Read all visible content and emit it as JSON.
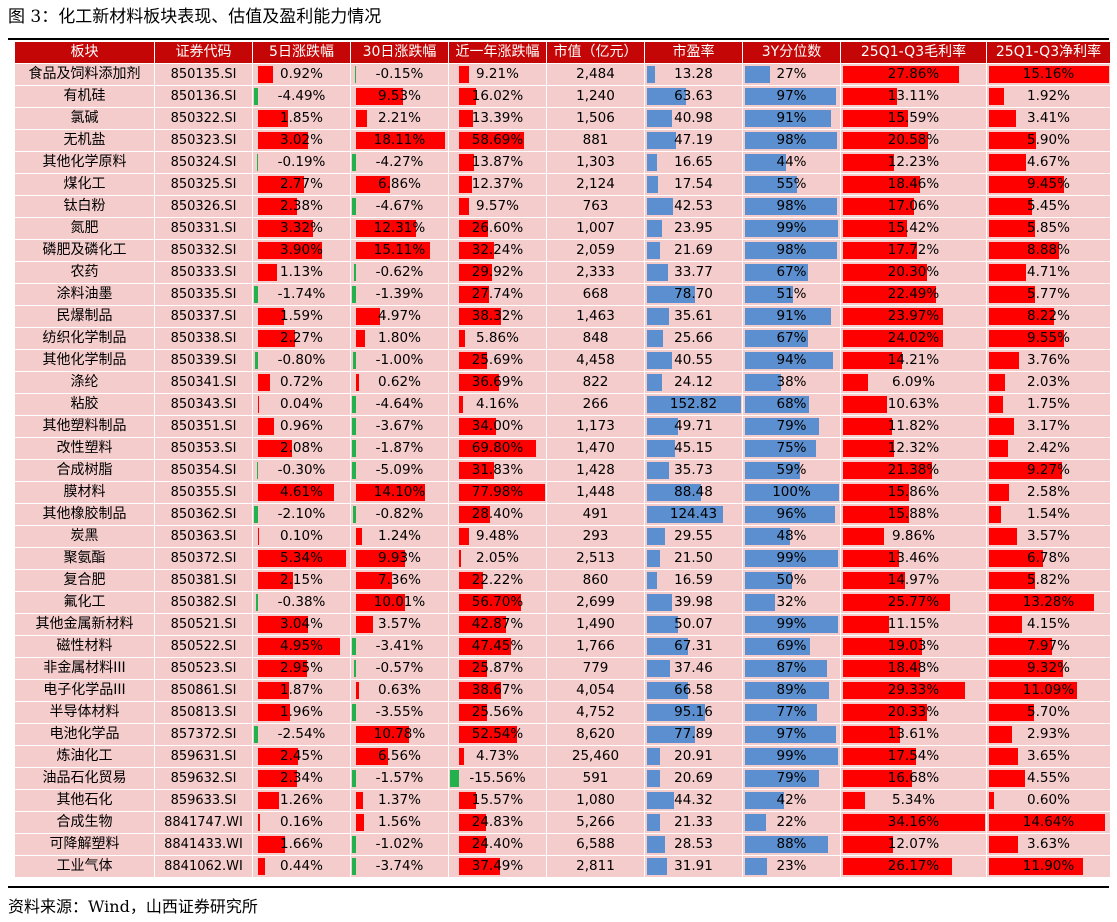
{
  "title": "图 3：化工新材料板块表现、估值及盈利能力情况",
  "source": "资料来源：Wind，山西证券研究所",
  "colors": {
    "header_bg": "#c50606",
    "cell_bg": "#f4cccc",
    "positive_bar": "#ff0000",
    "negative_bar": "#22b14c",
    "valuation_bar": "#5b8fcf",
    "margin_bar": "#ff0000"
  },
  "headers": [
    "板块",
    "证券代码",
    "5日涨跌幅",
    "30日涨跌幅",
    "近一年涨跌幅",
    "市值（亿元）",
    "市盈率",
    "3Y分位数",
    "25Q1-Q3毛利率",
    "25Q1-Q3净利率"
  ],
  "rows": [
    {
      "name": "食品及饲料添加剂",
      "code": "850135.SI",
      "d5": "0.92%",
      "d30": "-0.15%",
      "y1": "9.21%",
      "mcap": "2,484",
      "pe": "13.28",
      "pct3y": "27%",
      "gross": "27.86%",
      "net": "15.16%"
    },
    {
      "name": "有机硅",
      "code": "850136.SI",
      "d5": "-4.49%",
      "d30": "9.53%",
      "y1": "16.02%",
      "mcap": "1,240",
      "pe": "63.63",
      "pct3y": "97%",
      "gross": "13.11%",
      "net": "1.92%"
    },
    {
      "name": "氯碱",
      "code": "850322.SI",
      "d5": "1.85%",
      "d30": "2.21%",
      "y1": "13.39%",
      "mcap": "1,506",
      "pe": "40.98",
      "pct3y": "91%",
      "gross": "15.59%",
      "net": "3.41%"
    },
    {
      "name": "无机盐",
      "code": "850323.SI",
      "d5": "3.02%",
      "d30": "18.11%",
      "y1": "58.69%",
      "mcap": "881",
      "pe": "47.19",
      "pct3y": "98%",
      "gross": "20.58%",
      "net": "5.90%"
    },
    {
      "name": "其他化学原料",
      "code": "850324.SI",
      "d5": "-0.19%",
      "d30": "-4.27%",
      "y1": "13.87%",
      "mcap": "1,303",
      "pe": "16.65",
      "pct3y": "44%",
      "gross": "12.23%",
      "net": "4.67%"
    },
    {
      "name": "煤化工",
      "code": "850325.SI",
      "d5": "2.77%",
      "d30": "6.86%",
      "y1": "12.37%",
      "mcap": "2,124",
      "pe": "17.54",
      "pct3y": "55%",
      "gross": "18.46%",
      "net": "9.45%"
    },
    {
      "name": "钛白粉",
      "code": "850326.SI",
      "d5": "2.38%",
      "d30": "-4.67%",
      "y1": "9.57%",
      "mcap": "763",
      "pe": "42.53",
      "pct3y": "98%",
      "gross": "17.06%",
      "net": "5.45%"
    },
    {
      "name": "氮肥",
      "code": "850331.SI",
      "d5": "3.32%",
      "d30": "12.31%",
      "y1": "26.60%",
      "mcap": "1,007",
      "pe": "23.95",
      "pct3y": "99%",
      "gross": "15.42%",
      "net": "5.85%"
    },
    {
      "name": "磷肥及磷化工",
      "code": "850332.SI",
      "d5": "3.90%",
      "d30": "15.11%",
      "y1": "32.24%",
      "mcap": "2,059",
      "pe": "21.69",
      "pct3y": "98%",
      "gross": "17.72%",
      "net": "8.88%"
    },
    {
      "name": "农药",
      "code": "850333.SI",
      "d5": "1.13%",
      "d30": "-0.62%",
      "y1": "29.92%",
      "mcap": "2,333",
      "pe": "33.77",
      "pct3y": "67%",
      "gross": "20.30%",
      "net": "4.71%"
    },
    {
      "name": "涂料油墨",
      "code": "850335.SI",
      "d5": "-1.74%",
      "d30": "-1.39%",
      "y1": "27.74%",
      "mcap": "668",
      "pe": "78.70",
      "pct3y": "51%",
      "gross": "22.49%",
      "net": "5.77%"
    },
    {
      "name": "民爆制品",
      "code": "850337.SI",
      "d5": "1.59%",
      "d30": "4.97%",
      "y1": "38.32%",
      "mcap": "1,463",
      "pe": "35.61",
      "pct3y": "91%",
      "gross": "23.97%",
      "net": "8.22%"
    },
    {
      "name": "纺织化学制品",
      "code": "850338.SI",
      "d5": "2.27%",
      "d30": "1.80%",
      "y1": "5.86%",
      "mcap": "848",
      "pe": "25.66",
      "pct3y": "67%",
      "gross": "24.02%",
      "net": "9.55%"
    },
    {
      "name": "其他化学制品",
      "code": "850339.SI",
      "d5": "-0.80%",
      "d30": "-1.00%",
      "y1": "25.69%",
      "mcap": "4,458",
      "pe": "40.55",
      "pct3y": "94%",
      "gross": "14.21%",
      "net": "3.76%"
    },
    {
      "name": "涤纶",
      "code": "850341.SI",
      "d5": "0.72%",
      "d30": "0.62%",
      "y1": "36.69%",
      "mcap": "822",
      "pe": "24.12",
      "pct3y": "38%",
      "gross": "6.09%",
      "net": "2.03%"
    },
    {
      "name": "粘胶",
      "code": "850343.SI",
      "d5": "0.04%",
      "d30": "-4.64%",
      "y1": "4.16%",
      "mcap": "266",
      "pe": "152.82",
      "pct3y": "68%",
      "gross": "10.63%",
      "net": "1.75%"
    },
    {
      "name": "其他塑料制品",
      "code": "850351.SI",
      "d5": "0.96%",
      "d30": "-3.67%",
      "y1": "34.00%",
      "mcap": "1,173",
      "pe": "49.71",
      "pct3y": "79%",
      "gross": "11.82%",
      "net": "3.17%"
    },
    {
      "name": "改性塑料",
      "code": "850353.SI",
      "d5": "2.08%",
      "d30": "-1.87%",
      "y1": "69.80%",
      "mcap": "1,470",
      "pe": "45.15",
      "pct3y": "75%",
      "gross": "12.32%",
      "net": "2.42%"
    },
    {
      "name": "合成树脂",
      "code": "850354.SI",
      "d5": "-0.30%",
      "d30": "-5.09%",
      "y1": "31.83%",
      "mcap": "1,428",
      "pe": "35.73",
      "pct3y": "59%",
      "gross": "21.38%",
      "net": "9.27%"
    },
    {
      "name": "膜材料",
      "code": "850355.SI",
      "d5": "4.61%",
      "d30": "14.10%",
      "y1": "77.98%",
      "mcap": "1,448",
      "pe": "88.48",
      "pct3y": "100%",
      "gross": "15.86%",
      "net": "2.58%"
    },
    {
      "name": "其他橡胶制品",
      "code": "850362.SI",
      "d5": "-2.10%",
      "d30": "-0.82%",
      "y1": "28.40%",
      "mcap": "491",
      "pe": "124.43",
      "pct3y": "96%",
      "gross": "15.88%",
      "net": "1.54%"
    },
    {
      "name": "炭黑",
      "code": "850363.SI",
      "d5": "0.10%",
      "d30": "1.24%",
      "y1": "9.48%",
      "mcap": "293",
      "pe": "29.55",
      "pct3y": "48%",
      "gross": "9.86%",
      "net": "3.57%"
    },
    {
      "name": "聚氨酯",
      "code": "850372.SI",
      "d5": "5.34%",
      "d30": "9.93%",
      "y1": "2.05%",
      "mcap": "2,513",
      "pe": "21.50",
      "pct3y": "99%",
      "gross": "13.46%",
      "net": "6.78%"
    },
    {
      "name": "复合肥",
      "code": "850381.SI",
      "d5": "2.15%",
      "d30": "7.36%",
      "y1": "22.22%",
      "mcap": "860",
      "pe": "16.59",
      "pct3y": "50%",
      "gross": "14.97%",
      "net": "5.82%"
    },
    {
      "name": "氟化工",
      "code": "850382.SI",
      "d5": "-0.38%",
      "d30": "10.01%",
      "y1": "56.70%",
      "mcap": "2,699",
      "pe": "39.98",
      "pct3y": "32%",
      "gross": "25.77%",
      "net": "13.28%"
    },
    {
      "name": "其他金属新材料",
      "code": "850521.SI",
      "d5": "3.04%",
      "d30": "3.57%",
      "y1": "42.87%",
      "mcap": "1,490",
      "pe": "50.07",
      "pct3y": "99%",
      "gross": "11.15%",
      "net": "4.15%"
    },
    {
      "name": "磁性材料",
      "code": "850522.SI",
      "d5": "4.95%",
      "d30": "-3.41%",
      "y1": "47.45%",
      "mcap": "1,766",
      "pe": "67.31",
      "pct3y": "69%",
      "gross": "19.03%",
      "net": "7.97%"
    },
    {
      "name": "非金属材料III",
      "code": "850523.SI",
      "d5": "2.95%",
      "d30": "-0.57%",
      "y1": "25.87%",
      "mcap": "779",
      "pe": "37.46",
      "pct3y": "87%",
      "gross": "18.48%",
      "net": "9.32%"
    },
    {
      "name": "电子化学品III",
      "code": "850861.SI",
      "d5": "1.87%",
      "d30": "0.63%",
      "y1": "38.67%",
      "mcap": "4,054",
      "pe": "66.58",
      "pct3y": "89%",
      "gross": "29.33%",
      "net": "11.09%"
    },
    {
      "name": "半导体材料",
      "code": "850813.SI",
      "d5": "1.96%",
      "d30": "-3.55%",
      "y1": "25.56%",
      "mcap": "4,752",
      "pe": "95.16",
      "pct3y": "77%",
      "gross": "20.33%",
      "net": "5.70%"
    },
    {
      "name": "电池化学品",
      "code": "857372.SI",
      "d5": "-2.54%",
      "d30": "10.78%",
      "y1": "52.54%",
      "mcap": "8,620",
      "pe": "77.89",
      "pct3y": "97%",
      "gross": "13.61%",
      "net": "2.93%"
    },
    {
      "name": "炼油化工",
      "code": "859631.SI",
      "d5": "2.45%",
      "d30": "6.56%",
      "y1": "4.73%",
      "mcap": "25,460",
      "pe": "20.91",
      "pct3y": "99%",
      "gross": "17.54%",
      "net": "3.65%"
    },
    {
      "name": "油品石化贸易",
      "code": "859632.SI",
      "d5": "2.34%",
      "d30": "-1.57%",
      "y1": "-15.56%",
      "mcap": "591",
      "pe": "20.69",
      "pct3y": "79%",
      "gross": "16.68%",
      "net": "4.55%"
    },
    {
      "name": "其他石化",
      "code": "859633.SI",
      "d5": "1.26%",
      "d30": "1.37%",
      "y1": "15.57%",
      "mcap": "1,080",
      "pe": "44.32",
      "pct3y": "42%",
      "gross": "5.34%",
      "net": "0.60%"
    },
    {
      "name": "合成生物",
      "code": "8841747.WI",
      "d5": "0.16%",
      "d30": "1.56%",
      "y1": "24.83%",
      "mcap": "5,266",
      "pe": "21.33",
      "pct3y": "22%",
      "gross": "34.16%",
      "net": "14.64%"
    },
    {
      "name": "可降解塑料",
      "code": "8841433.WI",
      "d5": "1.66%",
      "d30": "-1.02%",
      "y1": "24.40%",
      "mcap": "6,588",
      "pe": "28.53",
      "pct3y": "88%",
      "gross": "12.07%",
      "net": "3.63%"
    },
    {
      "name": "工业气体",
      "code": "8841062.WI",
      "d5": "0.44%",
      "d30": "-3.74%",
      "y1": "37.49%",
      "mcap": "2,811",
      "pe": "31.91",
      "pct3y": "23%",
      "gross": "26.17%",
      "net": "11.90%"
    }
  ]
}
